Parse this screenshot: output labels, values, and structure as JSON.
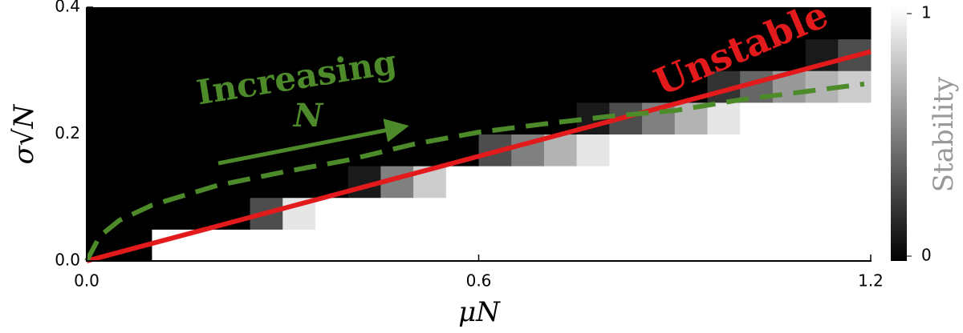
{
  "chart_data": {
    "type": "heatmap",
    "xlabel": "μN",
    "ylabel": "σ√N",
    "colorbar_label": "Stability",
    "xlim": [
      0,
      1.2
    ],
    "ylim": [
      0,
      0.4
    ],
    "xticks": [
      {
        "value": 0,
        "label": "0.0"
      },
      0.6,
      1.2
    ],
    "yticks": [
      {
        "value": 0,
        "label": "0.0"
      },
      0.2,
      0.4
    ],
    "clim": [
      0,
      1
    ],
    "cticks": [
      0,
      1
    ],
    "x_bins": [
      0,
      0.05,
      0.1,
      0.15,
      0.2,
      0.25,
      0.3,
      0.35,
      0.4,
      0.45,
      0.5,
      0.55,
      0.6,
      0.65,
      0.7,
      0.75,
      0.8,
      0.85,
      0.9,
      0.95,
      1.0,
      1.05,
      1.1,
      1.15,
      1.2
    ],
    "y_bins": [
      0,
      0.05,
      0.1,
      0.15,
      0.2,
      0.25,
      0.3,
      0.35,
      0.4
    ],
    "z": [
      [
        0,
        0,
        1,
        1,
        1,
        1,
        1,
        1,
        1,
        1,
        1,
        1,
        1,
        1,
        1,
        1,
        1,
        1,
        1,
        1,
        1,
        1,
        1,
        1
      ],
      [
        0,
        0,
        0,
        0,
        0,
        0.3,
        0.9,
        1,
        1,
        1,
        1,
        1,
        1,
        1,
        1,
        1,
        1,
        1,
        1,
        1,
        1,
        1,
        1,
        1
      ],
      [
        0,
        0,
        0,
        0,
        0,
        0,
        0,
        0,
        0.1,
        0.5,
        0.8,
        1,
        1,
        1,
        1,
        1,
        1,
        1,
        1,
        1,
        1,
        1,
        1,
        1
      ],
      [
        0,
        0,
        0,
        0,
        0,
        0,
        0,
        0,
        0,
        0,
        0,
        0,
        0.3,
        0.5,
        0.7,
        0.9,
        1,
        1,
        1,
        1,
        1,
        1,
        1,
        1
      ],
      [
        0,
        0,
        0,
        0,
        0,
        0,
        0,
        0,
        0,
        0,
        0,
        0,
        0,
        0,
        0,
        0.1,
        0.3,
        0.5,
        0.7,
        0.9,
        1,
        1,
        1,
        1
      ],
      [
        0,
        0,
        0,
        0,
        0,
        0,
        0,
        0,
        0,
        0,
        0,
        0,
        0,
        0,
        0,
        0,
        0,
        0,
        0,
        0.2,
        0.4,
        0.6,
        0.7,
        0.8
      ],
      [
        0,
        0,
        0,
        0,
        0,
        0,
        0,
        0,
        0,
        0,
        0,
        0,
        0,
        0,
        0,
        0,
        0,
        0,
        0,
        0,
        0,
        0,
        0.1,
        0.3
      ],
      [
        0,
        0,
        0,
        0,
        0,
        0,
        0,
        0,
        0,
        0,
        0,
        0,
        0,
        0,
        0,
        0,
        0,
        0,
        0,
        0,
        0,
        0,
        0,
        0
      ]
    ],
    "lines": [
      {
        "color": "#e31a1c",
        "dashed": false,
        "x": [
          0,
          1.2
        ],
        "y": [
          0,
          0.33
        ]
      },
      {
        "color": "#4d8a2a",
        "dashed": true,
        "x": [
          0,
          0.02,
          0.05,
          0.1,
          0.2,
          0.3,
          0.4,
          0.5,
          0.6,
          0.7,
          0.8,
          0.9,
          1.0,
          1.1,
          1.19
        ],
        "y": [
          0,
          0.039,
          0.064,
          0.088,
          0.119,
          0.14,
          0.159,
          0.184,
          0.203,
          0.216,
          0.228,
          0.237,
          0.254,
          0.267,
          0.279
        ]
      }
    ],
    "annotations": [
      "Increasing",
      "N",
      "Unstable"
    ]
  }
}
